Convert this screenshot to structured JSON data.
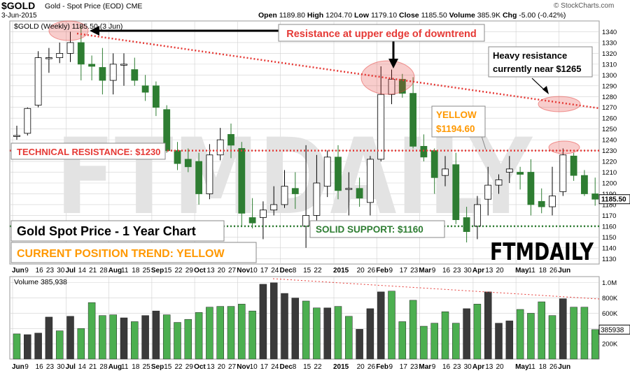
{
  "header": {
    "symbol": "$GOLD",
    "name": "Gold - Spot Price (EOD)",
    "exchange": "CME",
    "date": "3-Jun-2015",
    "watermark": "© StockCharts.com",
    "open_label": "Open",
    "open": "1189.80",
    "high_label": "High",
    "high": "1204.70",
    "low_label": "Low",
    "low": "1179.10",
    "close_label": "Close",
    "close": "1185.50",
    "volume_label": "Volume",
    "volume": "385.9K",
    "chg_label": "Chg",
    "chg": "-5.00 (-0.42%)"
  },
  "legend": {
    "price": "$GOLD (Weekly) 1185.50 (3 Jun)",
    "volume": "Volume 385,938"
  },
  "annotations": {
    "resistance_downtrend": "Resistance at upper edge of downtrend",
    "heavy_resistance_1": "Heavy resistance",
    "heavy_resistance_2": "currently near $1265",
    "yellow_1": "YELLOW",
    "yellow_2": "$1194.60",
    "technical_resistance": "TECHNICAL RESISTANCE: $1230",
    "title_box": "Gold Spot Price - 1 Year Chart",
    "trend_box": "CURRENT POSITION TREND: YELLOW",
    "solid_support": "SOLID SUPPORT: $1160",
    "brand": "FTMDAILY",
    "brand_watermark": "FTMDAILY",
    "last_price_tag": "1185.50",
    "last_volume_tag": "385938"
  },
  "colors": {
    "up": "#ffffff",
    "down": "#2e7d32",
    "volume_up": "#4caf50",
    "volume_down": "#3a3a3a",
    "resistance_line": "#e53935",
    "support_line": "#2e7d32",
    "annotation_red": "#e53935",
    "annotation_orange": "#ff9800",
    "grid": "#d0d0d0"
  },
  "chart_data": {
    "type": "candlestick",
    "timeframe": "Weekly",
    "price_ylim": [
      1125,
      1350
    ],
    "price_ticks": [
      1130,
      1140,
      1150,
      1160,
      1170,
      1180,
      1190,
      1200,
      1210,
      1220,
      1230,
      1240,
      1250,
      1260,
      1270,
      1280,
      1290,
      1300,
      1310,
      1320,
      1330,
      1340
    ],
    "volume_ticks": [
      {
        "value": 200000,
        "label": "200K"
      },
      {
        "value": 400000,
        "label": "400K"
      },
      {
        "value": 600000,
        "label": "600K"
      },
      {
        "value": 800000,
        "label": "800K"
      },
      {
        "value": 1000000,
        "label": "1.0M"
      }
    ],
    "volume_ylim": [
      0,
      1080000
    ],
    "x_labels": [
      {
        "i": 0,
        "t": "Jun",
        "b": true
      },
      {
        "i": 1,
        "t": "9"
      },
      {
        "i": 2,
        "t": "16"
      },
      {
        "i": 3,
        "t": "23"
      },
      {
        "i": 4,
        "t": "30"
      },
      {
        "i": 5,
        "t": "Jul",
        "b": true
      },
      {
        "i": 6,
        "t": "14"
      },
      {
        "i": 7,
        "t": "21"
      },
      {
        "i": 8,
        "t": "28"
      },
      {
        "i": 9,
        "t": "Aug",
        "b": true
      },
      {
        "i": 10,
        "t": "11"
      },
      {
        "i": 11,
        "t": "18"
      },
      {
        "i": 12,
        "t": "25"
      },
      {
        "i": 13,
        "t": "Sep",
        "b": true
      },
      {
        "i": 14,
        "t": "15"
      },
      {
        "i": 15,
        "t": "22"
      },
      {
        "i": 16,
        "t": "29"
      },
      {
        "i": 17,
        "t": "Oct",
        "b": true
      },
      {
        "i": 18,
        "t": "13"
      },
      {
        "i": 19,
        "t": "20"
      },
      {
        "i": 20,
        "t": "27"
      },
      {
        "i": 21,
        "t": "Nov",
        "b": true
      },
      {
        "i": 22,
        "t": "10"
      },
      {
        "i": 23,
        "t": "17"
      },
      {
        "i": 24,
        "t": "24"
      },
      {
        "i": 25,
        "t": "Dec",
        "b": true
      },
      {
        "i": 26,
        "t": "8"
      },
      {
        "i": 27,
        "t": "15"
      },
      {
        "i": 28,
        "t": "22"
      },
      {
        "i": 30,
        "t": "2015",
        "b": true
      },
      {
        "i": 32,
        "t": "20"
      },
      {
        "i": 33,
        "t": "26"
      },
      {
        "i": 34,
        "t": "Feb",
        "b": true
      },
      {
        "i": 35,
        "t": "9"
      },
      {
        "i": 36,
        "t": "17"
      },
      {
        "i": 37,
        "t": "23"
      },
      {
        "i": 38,
        "t": "Mar",
        "b": true
      },
      {
        "i": 39,
        "t": "9"
      },
      {
        "i": 40,
        "t": "16"
      },
      {
        "i": 41,
        "t": "23"
      },
      {
        "i": 42,
        "t": "30"
      },
      {
        "i": 43,
        "t": "Apr",
        "b": true
      },
      {
        "i": 44,
        "t": "13"
      },
      {
        "i": 45,
        "t": "20"
      },
      {
        "i": 47,
        "t": "May",
        "b": true
      },
      {
        "i": 48,
        "t": "11"
      },
      {
        "i": 49,
        "t": "18"
      },
      {
        "i": 50,
        "t": "26"
      },
      {
        "i": 51,
        "t": "Jun",
        "b": true
      }
    ],
    "candles": [
      {
        "o": 1244,
        "h": 1253,
        "l": 1240,
        "c": 1244
      },
      {
        "o": 1246,
        "h": 1270,
        "l": 1244,
        "c": 1269
      },
      {
        "o": 1272,
        "h": 1322,
        "l": 1270,
        "c": 1316
      },
      {
        "o": 1316,
        "h": 1325,
        "l": 1302,
        "c": 1316
      },
      {
        "o": 1316,
        "h": 1330,
        "l": 1311,
        "c": 1320
      },
      {
        "o": 1320,
        "h": 1340,
        "l": 1312,
        "c": 1330
      },
      {
        "o": 1330,
        "h": 1345,
        "l": 1295,
        "c": 1310
      },
      {
        "o": 1310,
        "h": 1318,
        "l": 1295,
        "c": 1308
      },
      {
        "o": 1307,
        "h": 1325,
        "l": 1282,
        "c": 1295
      },
      {
        "o": 1295,
        "h": 1320,
        "l": 1282,
        "c": 1310
      },
      {
        "o": 1310,
        "h": 1320,
        "l": 1290,
        "c": 1310
      },
      {
        "o": 1305,
        "h": 1316,
        "l": 1290,
        "c": 1295
      },
      {
        "o": 1290,
        "h": 1300,
        "l": 1276,
        "c": 1284
      },
      {
        "o": 1290,
        "h": 1294,
        "l": 1262,
        "c": 1270
      },
      {
        "o": 1268,
        "h": 1272,
        "l": 1228,
        "c": 1230
      },
      {
        "o": 1230,
        "h": 1238,
        "l": 1212,
        "c": 1218
      },
      {
        "o": 1222,
        "h": 1232,
        "l": 1210,
        "c": 1215
      },
      {
        "o": 1220,
        "h": 1228,
        "l": 1180,
        "c": 1190
      },
      {
        "o": 1190,
        "h": 1236,
        "l": 1185,
        "c": 1226
      },
      {
        "o": 1226,
        "h": 1251,
        "l": 1221,
        "c": 1240
      },
      {
        "o": 1245,
        "h": 1255,
        "l": 1223,
        "c": 1235
      },
      {
        "o": 1232,
        "h": 1238,
        "l": 1160,
        "c": 1172
      },
      {
        "o": 1168,
        "h": 1186,
        "l": 1158,
        "c": 1163
      },
      {
        "o": 1168,
        "h": 1183,
        "l": 1148,
        "c": 1175
      },
      {
        "o": 1175,
        "h": 1197,
        "l": 1170,
        "c": 1180
      },
      {
        "o": 1180,
        "h": 1212,
        "l": 1177,
        "c": 1197
      },
      {
        "o": 1195,
        "h": 1210,
        "l": 1176,
        "c": 1190
      },
      {
        "o": 1160,
        "h": 1235,
        "l": 1140,
        "c": 1170
      },
      {
        "o": 1170,
        "h": 1226,
        "l": 1162,
        "c": 1200
      },
      {
        "o": 1197,
        "h": 1230,
        "l": 1187,
        "c": 1224
      },
      {
        "o": 1224,
        "h": 1235,
        "l": 1185,
        "c": 1193
      },
      {
        "o": 1195,
        "h": 1210,
        "l": 1170,
        "c": 1195
      },
      {
        "o": 1195,
        "h": 1205,
        "l": 1178,
        "c": 1186
      },
      {
        "o": 1182,
        "h": 1225,
        "l": 1170,
        "c": 1222
      },
      {
        "o": 1222,
        "h": 1308,
        "l": 1220,
        "c": 1282
      },
      {
        "o": 1282,
        "h": 1305,
        "l": 1273,
        "c": 1296
      },
      {
        "o": 1296,
        "h": 1301,
        "l": 1279,
        "c": 1283
      },
      {
        "o": 1283,
        "h": 1298,
        "l": 1232,
        "c": 1234
      },
      {
        "o": 1234,
        "h": 1245,
        "l": 1220,
        "c": 1224
      },
      {
        "o": 1230,
        "h": 1232,
        "l": 1190,
        "c": 1205
      },
      {
        "o": 1207,
        "h": 1225,
        "l": 1197,
        "c": 1213
      },
      {
        "o": 1217,
        "h": 1228,
        "l": 1162,
        "c": 1166
      },
      {
        "o": 1168,
        "h": 1178,
        "l": 1145,
        "c": 1155
      },
      {
        "o": 1160,
        "h": 1188,
        "l": 1148,
        "c": 1180
      },
      {
        "o": 1185,
        "h": 1215,
        "l": 1170,
        "c": 1198
      },
      {
        "o": 1198,
        "h": 1208,
        "l": 1190,
        "c": 1203
      },
      {
        "o": 1210,
        "h": 1225,
        "l": 1200,
        "c": 1213
      },
      {
        "o": 1210,
        "h": 1215,
        "l": 1194,
        "c": 1208
      },
      {
        "o": 1210,
        "h": 1222,
        "l": 1170,
        "c": 1180
      },
      {
        "o": 1183,
        "h": 1195,
        "l": 1172,
        "c": 1178
      },
      {
        "o": 1178,
        "h": 1215,
        "l": 1170,
        "c": 1188
      },
      {
        "o": 1192,
        "h": 1232,
        "l": 1188,
        "c": 1226
      },
      {
        "o": 1225,
        "h": 1228,
        "l": 1202,
        "c": 1207
      },
      {
        "o": 1207,
        "h": 1212,
        "l": 1188,
        "c": 1190
      },
      {
        "o": 1190,
        "h": 1205,
        "l": 1179,
        "c": 1185
      }
    ],
    "volumes": [
      {
        "v": 330000,
        "up": true
      },
      {
        "v": 320000,
        "up": false
      },
      {
        "v": 340000,
        "up": false
      },
      {
        "v": 550000,
        "up": false
      },
      {
        "v": 370000,
        "up": true
      },
      {
        "v": 560000,
        "up": false
      },
      {
        "v": 400000,
        "up": true
      },
      {
        "v": 740000,
        "up": true
      },
      {
        "v": 570000,
        "up": true
      },
      {
        "v": 580000,
        "up": true
      },
      {
        "v": 540000,
        "up": false
      },
      {
        "v": 490000,
        "up": true
      },
      {
        "v": 570000,
        "up": false
      },
      {
        "v": 630000,
        "up": false
      },
      {
        "v": 580000,
        "up": true
      },
      {
        "v": 480000,
        "up": true
      },
      {
        "v": 520000,
        "up": true
      },
      {
        "v": 610000,
        "up": true
      },
      {
        "v": 680000,
        "up": true
      },
      {
        "v": 690000,
        "up": true
      },
      {
        "v": 690000,
        "up": true
      },
      {
        "v": 720000,
        "up": true
      },
      {
        "v": 630000,
        "up": true
      },
      {
        "v": 980000,
        "up": false
      },
      {
        "v": 1000000,
        "up": false
      },
      {
        "v": 860000,
        "up": false
      },
      {
        "v": 800000,
        "up": false
      },
      {
        "v": 760000,
        "up": true
      },
      {
        "v": 670000,
        "up": true
      },
      {
        "v": 670000,
        "up": false
      },
      {
        "v": 690000,
        "up": true
      },
      {
        "v": 560000,
        "up": true
      },
      {
        "v": 390000,
        "up": false
      },
      {
        "v": 660000,
        "up": false
      },
      {
        "v": 880000,
        "up": false
      },
      {
        "v": 890000,
        "up": true
      },
      {
        "v": 490000,
        "up": true
      },
      {
        "v": 770000,
        "up": true
      },
      {
        "v": 430000,
        "up": true
      },
      {
        "v": 470000,
        "up": true
      },
      {
        "v": 620000,
        "up": true
      },
      {
        "v": 470000,
        "up": true
      },
      {
        "v": 660000,
        "up": false
      },
      {
        "v": 720000,
        "up": true
      },
      {
        "v": 880000,
        "up": false
      },
      {
        "v": 470000,
        "up": false
      },
      {
        "v": 500000,
        "up": false
      },
      {
        "v": 650000,
        "up": true
      },
      {
        "v": 600000,
        "up": true
      },
      {
        "v": 750000,
        "up": true
      },
      {
        "v": 570000,
        "up": true
      },
      {
        "v": 790000,
        "up": false
      },
      {
        "v": 680000,
        "up": true
      },
      {
        "v": 680000,
        "up": true
      },
      {
        "v": 385938,
        "up": true
      }
    ],
    "levels": {
      "technical_resistance": 1230,
      "solid_support": 1160
    }
  }
}
